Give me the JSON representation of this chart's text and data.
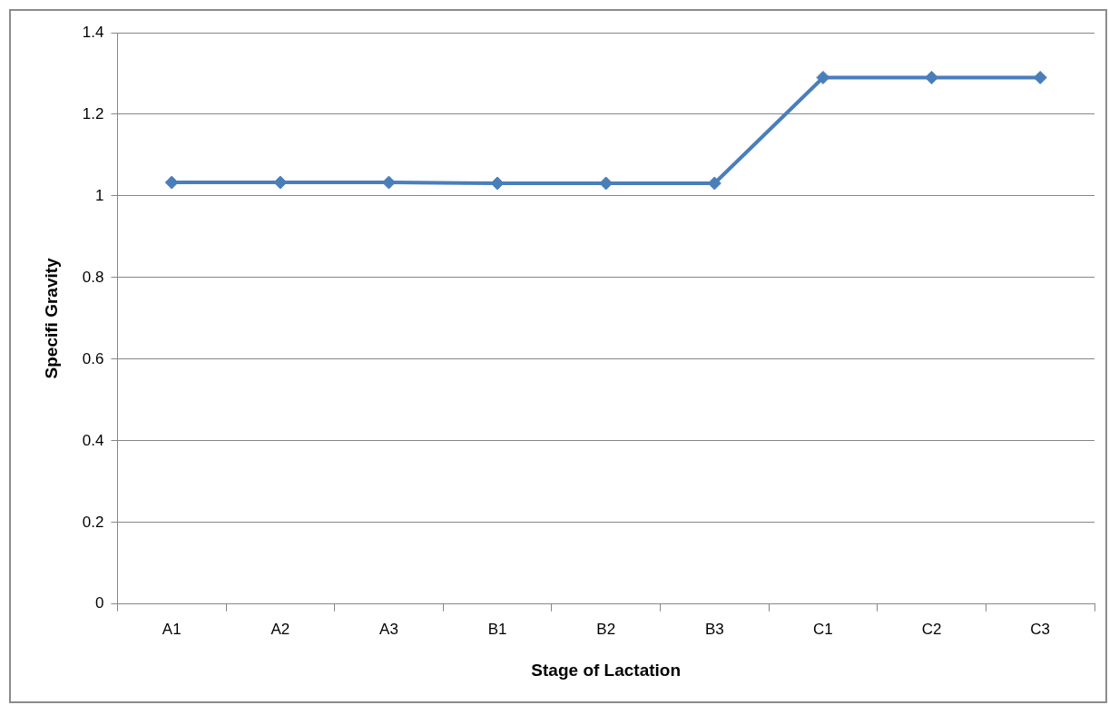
{
  "chart_data": {
    "type": "line",
    "xlabel": "Stage of Lactation",
    "ylabel": "Specifi Gravity",
    "categories": [
      "A1",
      "A2",
      "A3",
      "B1",
      "B2",
      "B3",
      "C1",
      "C2",
      "C3"
    ],
    "series": [
      {
        "color": "#4a7ebb",
        "values": [
          1.033,
          1.033,
          1.033,
          1.031,
          1.031,
          1.031,
          1.29,
          1.29,
          1.29
        ]
      }
    ],
    "ylim": [
      0,
      1.4
    ],
    "yticks": [
      0,
      0.2,
      0.4,
      0.6,
      0.8,
      1,
      1.2,
      1.4
    ],
    "grid": "y",
    "legend": false,
    "marker": "diamond",
    "line_style": "solid"
  }
}
